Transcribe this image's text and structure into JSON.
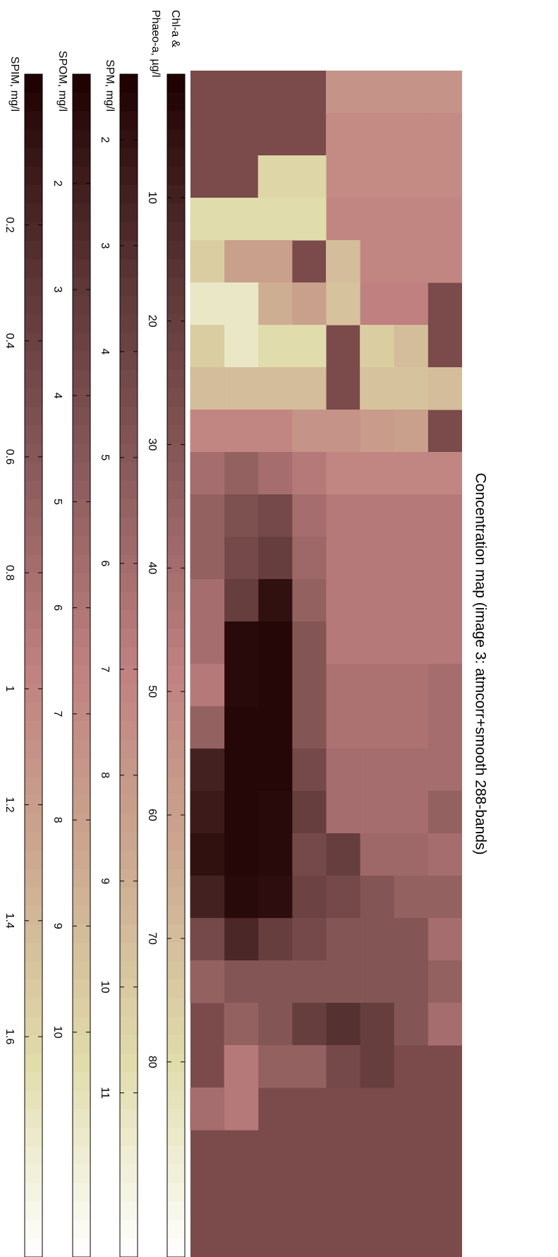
{
  "chart_data": {
    "type": "heatmap",
    "title": "Concentration map (image 3: atmcorr+smooth 288-bands)",
    "background_color": "#7b4a4a",
    "colormap": [
      "#1e0000",
      "#5a3434",
      "#8a5a5a",
      "#c08080",
      "#ccaa90",
      "#e0dcaa",
      "#ffffff"
    ],
    "map": {
      "values": [
        [
          55,
          52,
          52,
          50,
          50,
          null,
          null,
          70,
          null,
          50,
          45,
          45,
          45,
          45,
          40,
          40,
          40,
          35,
          40,
          35,
          40,
          35,
          40,
          null,
          null
        ],
        [
          55,
          52,
          52,
          50,
          50,
          48,
          70,
          72,
          60,
          50,
          45,
          45,
          45,
          45,
          42,
          42,
          40,
          40,
          38,
          35,
          30,
          30,
          30,
          null,
          null
        ],
        [
          55,
          52,
          52,
          50,
          50,
          48,
          75,
          72,
          58,
          50,
          45,
          45,
          45,
          45,
          42,
          42,
          40,
          40,
          38,
          30,
          30,
          30,
          20,
          20,
          null
        ],
        [
          55,
          52,
          52,
          50,
          70,
          72,
          null,
          null,
          55,
          50,
          45,
          45,
          45,
          45,
          42,
          42,
          40,
          40,
          20,
          25,
          30,
          30,
          15,
          25,
          null
        ],
        [
          null,
          null,
          78,
          80,
          null,
          60,
          80,
          70,
          55,
          45,
          40,
          38,
          35,
          30,
          30,
          30,
          25,
          20,
          25,
          22,
          25,
          30,
          20,
          35,
          null
        ],
        [
          null,
          null,
          78,
          80,
          60,
          65,
          80,
          70,
          50,
          40,
          25,
          20,
          5,
          2,
          2,
          2,
          2,
          3,
          3,
          4,
          20,
          30,
          30,
          35,
          null
        ],
        [
          null,
          null,
          null,
          80,
          60,
          85,
          85,
          70,
          50,
          35,
          28,
          25,
          20,
          3,
          3,
          2,
          2,
          2,
          2,
          3,
          12,
          30,
          35,
          45,
          45
        ],
        [
          null,
          null,
          null,
          80,
          75,
          85,
          75,
          70,
          50,
          40,
          35,
          35,
          40,
          40,
          45,
          35,
          10,
          8,
          5,
          10,
          25,
          35,
          null,
          null,
          40
        ]
      ]
    },
    "colorbars": [
      {
        "label": [
          "Chl-a &",
          "Phaeo-a, µg/l"
        ],
        "lim": [
          0,
          95.8
        ],
        "ticks": [
          10,
          20,
          30,
          40,
          50,
          60,
          70,
          80
        ]
      },
      {
        "label": [
          "SPM, mg/l"
        ],
        "lim": [
          1.38,
          12.55
        ],
        "ticks": [
          2,
          3,
          4,
          5,
          6,
          7,
          8,
          9,
          10,
          11
        ]
      },
      {
        "label": [
          "SPOM, mg/l"
        ],
        "lim": [
          0.97,
          12.12
        ],
        "ticks": [
          2,
          3,
          4,
          5,
          6,
          7,
          8,
          9,
          10
        ]
      },
      {
        "label": [
          "SPIM, mg/l"
        ],
        "lim": [
          -0.06,
          1.98
        ],
        "ticks": [
          0.2,
          0.4,
          0.6,
          0.8,
          1,
          1.2,
          1.4,
          1.6
        ]
      }
    ]
  }
}
